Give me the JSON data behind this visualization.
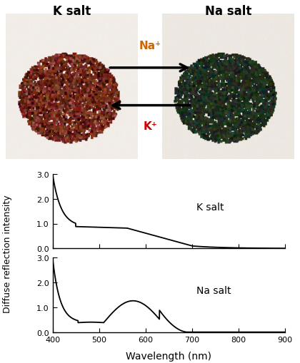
{
  "title_k": "K salt",
  "title_na": "Na salt",
  "arrow_na_label": "Na⁺",
  "arrow_k_label": "K⁺",
  "ylabel": "Diffuse reflection intensity",
  "xlabel": "Wavelength (nm)",
  "xlim": [
    400,
    900
  ],
  "ylim_k": [
    0.0,
    3.0
  ],
  "ylim_na": [
    0.0,
    3.0
  ],
  "yticks": [
    0.0,
    1.0,
    2.0,
    3.0
  ],
  "xticks": [
    400,
    500,
    600,
    700,
    800,
    900
  ],
  "k_salt_label": "K salt",
  "na_salt_label": "Na salt",
  "line_color": "#000000",
  "na_label_color": "#cc6600",
  "k_label_color": "#cc0000",
  "background_color": "#ffffff",
  "img_bg_color": "#f0ece8",
  "k_pile_colors": [
    "#7a3020",
    "#6a2018",
    "#8a4030",
    "#5a1808",
    "#9a5040",
    "#4a1008",
    "#7a2810",
    "#8a3828",
    "#6a2818",
    "#3a0808"
  ],
  "na_pile_colors": [
    "#1a2a18",
    "#2a3820",
    "#182818",
    "#203020",
    "#283828",
    "#1a3020",
    "#222820",
    "#1e2c1e",
    "#243424",
    "#1c281c"
  ]
}
